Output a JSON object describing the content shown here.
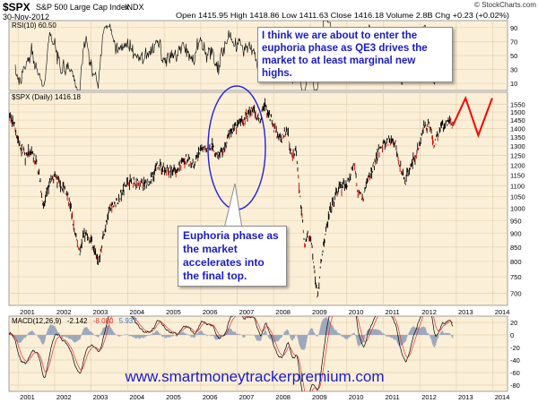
{
  "header": {
    "ticker": "$SPX",
    "name": "S&P 500 Large Cap Index",
    "exchange": "INDX",
    "date": "30-Nov-2012",
    "stats": "Open 1415.95  High 1418.86  Low 1411.63  Close 1416.18  Volume 2.8B  Chg +0.23 (+0.02%)",
    "credit": "© StockCharts.com"
  },
  "rsi": {
    "label": "RSI(10) 60.50",
    "ticks": [
      "90",
      "70",
      "50",
      "30",
      "10"
    ]
  },
  "price": {
    "label": "$SPX (Daily) 1416.18",
    "ticks": [
      "1550",
      "1500",
      "1450",
      "1400",
      "1350",
      "1300",
      "1250",
      "1200",
      "1150",
      "1100",
      "1050",
      "1000",
      "950",
      "900",
      "850",
      "800",
      "750",
      "700"
    ]
  },
  "macd": {
    "label": "MACD(12,26,9)",
    "value1": "-2.142",
    "value2": "-8.080",
    "value3": "5.937",
    "ticks": [
      "20",
      "0",
      "-20",
      "-40",
      "-60",
      "-80"
    ]
  },
  "x_axis_labels": [
    "2001",
    "2002",
    "2003",
    "2004",
    "2005",
    "2006",
    "2007",
    "2008",
    "2009",
    "2010",
    "2011",
    "2012",
    "2013",
    "2014"
  ],
  "annotations": {
    "qe3_note": "I think we are about to enter the euphoria phase as QE3 drives the market to at least marginal new highs.",
    "euphoria_note": "Euphoria phase as the market accelerates into the final top.",
    "website": "www.smartmoneytrackerpremium.com"
  },
  "colors": {
    "panel_bg": "#fcefd8",
    "grid": "#e4d2b0",
    "price_bar": "#000000",
    "down_bar": "#cc0000",
    "projection": "#ff0000",
    "ellipse": "#2222dd",
    "annotation_text": "#1a1acc"
  },
  "chart_data": {
    "type": "line",
    "scale": "log",
    "x_range": [
      2000.75,
      2014.4
    ],
    "y_range": [
      665,
      1630
    ],
    "ylim_rsi": [
      0,
      100
    ],
    "ylim_macd": [
      -90,
      30
    ],
    "series": [
      {
        "x": [
          2000.75,
          2000.9,
          2001.0,
          2001.2,
          2001.35,
          2001.45,
          2001.55,
          2001.7,
          2001.8,
          2001.95,
          2002.1,
          2002.3,
          2002.45,
          2002.55,
          2002.7,
          2002.8,
          2002.95,
          2003.1,
          2003.2,
          2003.35,
          2003.5,
          2003.75,
          2004.0,
          2004.2,
          2004.4,
          2004.6,
          2004.8,
          2005.0,
          2005.3,
          2005.6,
          2005.8,
          2006.0,
          2006.3,
          2006.45,
          2006.6,
          2006.8,
          2007.0,
          2007.2,
          2007.45,
          2007.55,
          2007.62,
          2007.75,
          2007.83,
          2007.92,
          2008.05,
          2008.2,
          2008.35,
          2008.5,
          2008.6,
          2008.75,
          2008.85,
          2008.95,
          2009.05,
          2009.15,
          2009.2,
          2009.3,
          2009.45,
          2009.6,
          2009.8,
          2010.0,
          2010.2,
          2010.3,
          2010.45,
          2010.55,
          2010.7,
          2010.85,
          2011.0,
          2011.2,
          2011.35,
          2011.45,
          2011.6,
          2011.75,
          2011.9,
          2012.1,
          2012.25,
          2012.4,
          2012.5,
          2012.65,
          2012.8,
          2012.9
        ],
        "values": [
          1480,
          1420,
          1330,
          1250,
          1270,
          1230,
          1180,
          1000,
          1080,
          1150,
          1120,
          1080,
          1000,
          900,
          830,
          900,
          880,
          850,
          800,
          900,
          990,
          1040,
          1120,
          1120,
          1100,
          1120,
          1190,
          1180,
          1170,
          1230,
          1200,
          1280,
          1300,
          1250,
          1270,
          1370,
          1420,
          1460,
          1530,
          1460,
          1440,
          1560,
          1490,
          1460,
          1380,
          1330,
          1400,
          1260,
          1280,
          1000,
          860,
          900,
          850,
          730,
          690,
          800,
          930,
          1020,
          1090,
          1110,
          1200,
          1080,
          1040,
          1120,
          1170,
          1260,
          1300,
          1340,
          1300,
          1200,
          1120,
          1210,
          1250,
          1400,
          1420,
          1300,
          1380,
          1420,
          1460,
          1416
        ]
      },
      {
        "name": "",
        "x": [
          2012.9,
          2013.25,
          2013.6,
          2013.98
        ],
        "values": [
          1416,
          1590,
          1360,
          1590
        ]
      }
    ]
  }
}
